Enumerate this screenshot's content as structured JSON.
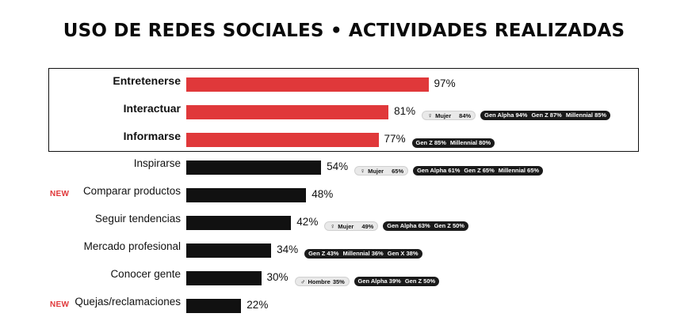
{
  "chart_data": {
    "type": "bar",
    "orientation": "horizontal",
    "title": "USO DE REDES SOCIALES • ACTIVIDADES REALIZADAS",
    "unit": "%",
    "xlim": [
      0,
      100
    ],
    "highlight_color": "#e0383a",
    "default_color": "#111111",
    "rows": [
      {
        "label": "Entretenerse",
        "value": 97,
        "value_label": "97%",
        "highlighted": true,
        "is_new": false,
        "gender": null,
        "generations": []
      },
      {
        "label": "Interactuar",
        "value": 81,
        "value_label": "81%",
        "highlighted": true,
        "is_new": false,
        "gender": {
          "icon": "female-icon",
          "symbol": "♀",
          "label": "Mujer",
          "value": "84%"
        },
        "generations": [
          {
            "label": "Gen Alpha",
            "value": "94%"
          },
          {
            "label": "Gen Z",
            "value": "87%"
          },
          {
            "label": "Millennial",
            "value": "85%"
          }
        ]
      },
      {
        "label": "Informarse",
        "value": 77,
        "value_label": "77%",
        "highlighted": true,
        "is_new": false,
        "gender": null,
        "generations": [
          {
            "label": "Gen Z",
            "value": "85%"
          },
          {
            "label": "Millennial",
            "value": "80%"
          }
        ]
      },
      {
        "label": "Inspirarse",
        "value": 54,
        "value_label": "54%",
        "highlighted": false,
        "is_new": false,
        "gender": {
          "icon": "female-icon",
          "symbol": "♀",
          "label": "Mujer",
          "value": "65%"
        },
        "generations": [
          {
            "label": "Gen Alpha",
            "value": "61%"
          },
          {
            "label": "Gen Z",
            "value": "65%"
          },
          {
            "label": "Millennial",
            "value": "65%"
          }
        ]
      },
      {
        "label": "Comparar productos",
        "value": 48,
        "value_label": "48%",
        "highlighted": false,
        "is_new": true,
        "gender": null,
        "generations": []
      },
      {
        "label": "Seguir tendencias",
        "value": 42,
        "value_label": "42%",
        "highlighted": false,
        "is_new": false,
        "gender": {
          "icon": "female-icon",
          "symbol": "♀",
          "label": "Mujer",
          "value": "49%"
        },
        "generations": [
          {
            "label": "Gen Alpha",
            "value": "63%"
          },
          {
            "label": "Gen Z",
            "value": "50%"
          }
        ]
      },
      {
        "label": "Mercado profesional",
        "value": 34,
        "value_label": "34%",
        "highlighted": false,
        "is_new": false,
        "gender": null,
        "generations": [
          {
            "label": "Gen Z",
            "value": "43%"
          },
          {
            "label": "Millennial",
            "value": "36%"
          },
          {
            "label": "Gen X",
            "value": "38%"
          }
        ]
      },
      {
        "label": "Conocer gente",
        "value": 30,
        "value_label": "30%",
        "highlighted": false,
        "is_new": false,
        "gender": {
          "icon": "male-icon",
          "symbol": "♂",
          "label": "Hombre",
          "value": "35%"
        },
        "generations": [
          {
            "label": "Gen Alpha",
            "value": "39%"
          },
          {
            "label": "Gen Z",
            "value": "50%"
          }
        ]
      },
      {
        "label": "Quejas/reclamaciones",
        "value": 22,
        "value_label": "22%",
        "highlighted": false,
        "is_new": true,
        "gender": null,
        "generations": []
      }
    ]
  },
  "new_badge_text": "NEW"
}
